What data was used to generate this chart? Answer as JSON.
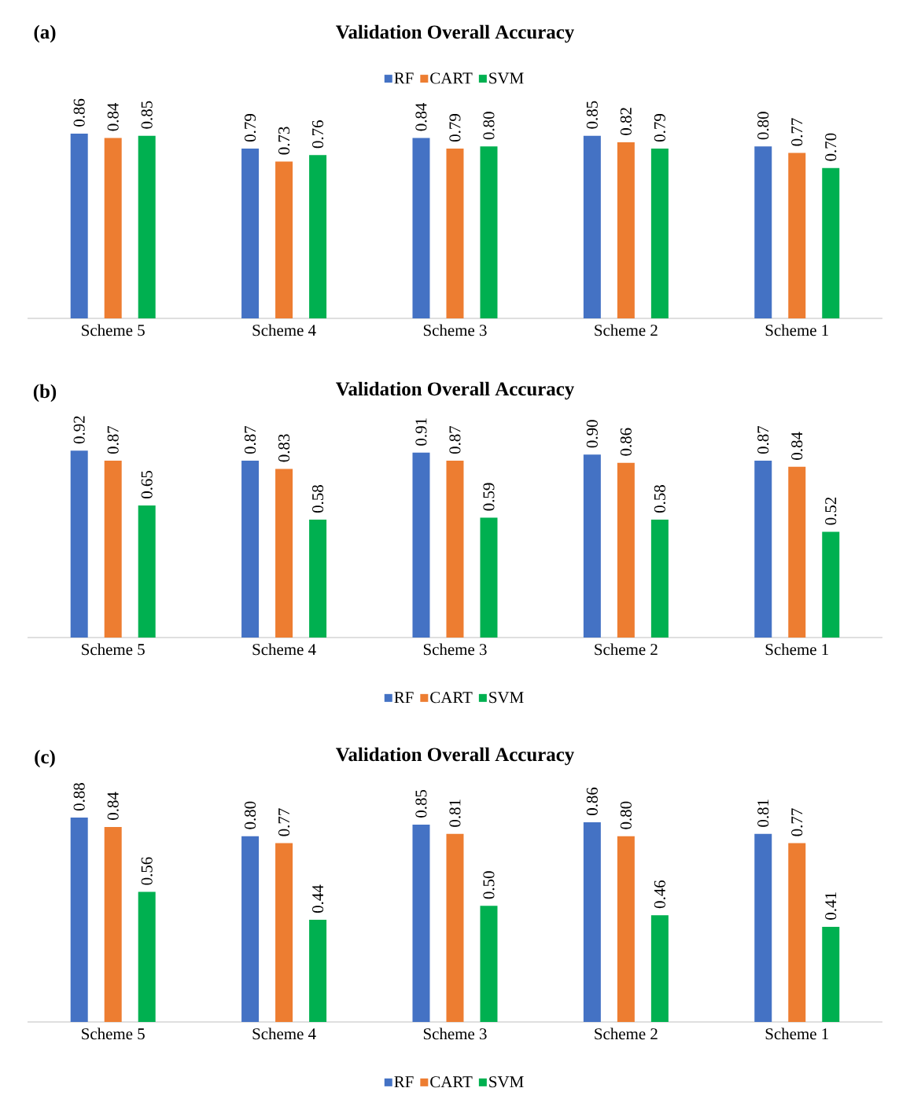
{
  "chart_data": [
    {
      "type": "bar",
      "title": "Validation Overall Accuracy",
      "annotations": [
        "(a)"
      ],
      "categories": [
        "Scheme 5",
        "Scheme 4",
        "Scheme 3",
        "Scheme 2",
        "Scheme 1"
      ],
      "legend": "top",
      "series": [
        {
          "name": "RF",
          "color": "#4472c4",
          "values": [
            0.86,
            0.79,
            0.84,
            0.85,
            0.8
          ],
          "value_labels": [
            "0.86",
            "0.79",
            "0.84",
            "0.85",
            "0.80"
          ]
        },
        {
          "name": "CART",
          "color": "#ed7d31",
          "values": [
            0.84,
            0.73,
            0.79,
            0.82,
            0.77
          ],
          "value_labels": [
            "0.84",
            "0.73",
            "0.79",
            "0.82",
            "0.77"
          ]
        },
        {
          "name": "SVM",
          "color": "#00b050",
          "values": [
            0.85,
            0.76,
            0.8,
            0.79,
            0.7
          ],
          "value_labels": [
            "0.85",
            "0.76",
            "0.80",
            "0.79",
            "0.70"
          ]
        }
      ]
    },
    {
      "type": "bar",
      "title": "Validation Overall Accuracy",
      "annotations": [
        "(b)"
      ],
      "categories": [
        "Scheme 5",
        "Scheme 4",
        "Scheme 3",
        "Scheme 2",
        "Scheme 1"
      ],
      "legend": "bottom",
      "series": [
        {
          "name": "RF",
          "color": "#4472c4",
          "values": [
            0.92,
            0.87,
            0.91,
            0.9,
            0.87
          ],
          "value_labels": [
            "0.92",
            "0.87",
            "0.91",
            "0.90",
            "0.87"
          ]
        },
        {
          "name": "CART",
          "color": "#ed7d31",
          "values": [
            0.87,
            0.83,
            0.87,
            0.86,
            0.84
          ],
          "value_labels": [
            "0.87",
            "0.83",
            "0.87",
            "0.86",
            "0.84"
          ]
        },
        {
          "name": "SVM",
          "color": "#00b050",
          "values": [
            0.65,
            0.58,
            0.59,
            0.58,
            0.52
          ],
          "value_labels": [
            "0.65",
            "0.58",
            "0.59",
            "0.58",
            "0.52"
          ]
        }
      ]
    },
    {
      "type": "bar",
      "title": "Validation Overall Accuracy",
      "annotations": [
        "(c)"
      ],
      "categories": [
        "Scheme 5",
        "Scheme 4",
        "Scheme 3",
        "Scheme 2",
        "Scheme 1"
      ],
      "legend": "bottom",
      "series": [
        {
          "name": "RF",
          "color": "#4472c4",
          "values": [
            0.88,
            0.8,
            0.85,
            0.86,
            0.81
          ],
          "value_labels": [
            "0.88",
            "0.80",
            "0.85",
            "0.86",
            "0.81"
          ]
        },
        {
          "name": "CART",
          "color": "#ed7d31",
          "values": [
            0.84,
            0.77,
            0.81,
            0.8,
            0.77
          ],
          "value_labels": [
            "0.84",
            "0.77",
            "0.81",
            "0.80",
            "0.77"
          ]
        },
        {
          "name": "SVM",
          "color": "#00b050",
          "values": [
            0.56,
            0.44,
            0.5,
            0.46,
            0.41
          ],
          "value_labels": [
            "0.56",
            "0.44",
            "0.50",
            "0.46",
            "0.41"
          ]
        }
      ]
    }
  ]
}
